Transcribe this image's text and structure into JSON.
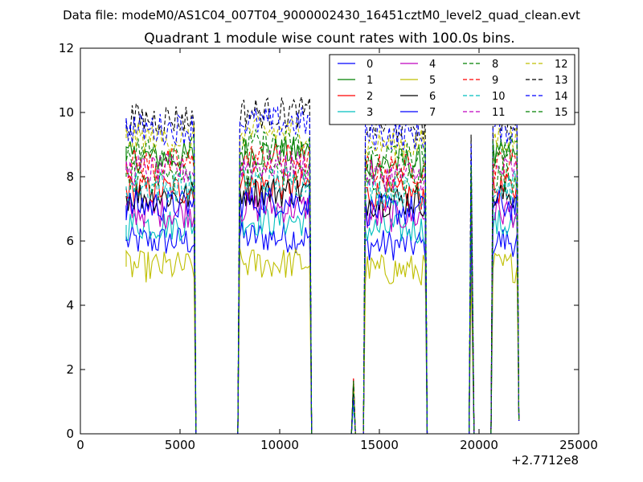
{
  "figure": {
    "suptitle": "Data file: modeM0/AS1C04_007T04_9000002430_16451cztM0_level2_quad_clean.evt"
  },
  "chart_data": {
    "type": "line",
    "title": "Quadrant 1 module wise count rates with 100.0s bins.",
    "xlabel": "",
    "ylabel": "",
    "xlim": [
      0,
      25000
    ],
    "ylim": [
      0,
      12
    ],
    "x_ticks": [
      0,
      5000,
      10000,
      15000,
      20000,
      25000
    ],
    "y_ticks": [
      0,
      2,
      4,
      6,
      8,
      10,
      12
    ],
    "x_offset_label": "+2.7712e8",
    "grid": false,
    "legend_position": "top-right",
    "legend_columns": 4,
    "series": [
      {
        "name": "0",
        "color": "#0000ff",
        "dash": "solid",
        "level": 6.0
      },
      {
        "name": "1",
        "color": "#008000",
        "dash": "solid",
        "level": 8.6
      },
      {
        "name": "2",
        "color": "#ff0000",
        "dash": "solid",
        "level": 7.6
      },
      {
        "name": "3",
        "color": "#00bfbf",
        "dash": "solid",
        "level": 6.5
      },
      {
        "name": "4",
        "color": "#bf00bf",
        "dash": "solid",
        "level": 6.9
      },
      {
        "name": "5",
        "color": "#bfbf00",
        "dash": "solid",
        "level": 5.2
      },
      {
        "name": "6",
        "color": "#000000",
        "dash": "solid",
        "level": 7.4
      },
      {
        "name": "7",
        "color": "#0000ff",
        "dash": "solid",
        "level": 7.1
      },
      {
        "name": "8",
        "color": "#008000",
        "dash": "dashed",
        "level": 8.0
      },
      {
        "name": "9",
        "color": "#ff0000",
        "dash": "dashed",
        "level": 8.4
      },
      {
        "name": "10",
        "color": "#00bfbf",
        "dash": "dashed",
        "level": 7.7
      },
      {
        "name": "11",
        "color": "#bf00bf",
        "dash": "dashed",
        "level": 8.2
      },
      {
        "name": "12",
        "color": "#bfbf00",
        "dash": "dashed",
        "level": 9.2
      },
      {
        "name": "13",
        "color": "#000000",
        "dash": "dashed",
        "level": 9.8
      },
      {
        "name": "14",
        "color": "#0000ff",
        "dash": "dashed",
        "level": 9.5
      },
      {
        "name": "15",
        "color": "#008000",
        "dash": "dashed",
        "level": 8.8
      }
    ],
    "segments": [
      {
        "x_start": 2300,
        "x_end": 5700,
        "scale": 1.0
      },
      {
        "x_start": 8000,
        "x_end": 11500,
        "scale": 1.02
      },
      {
        "x_start": 14300,
        "x_end": 17300,
        "scale": 0.98
      },
      {
        "x_start": 19600,
        "x_end": 19650,
        "scale": 0.95
      },
      {
        "x_start": 20700,
        "x_end": 21950,
        "scale": 1.0
      }
    ],
    "gap_level": 0,
    "spike": {
      "x": 13700,
      "value": 1.5
    }
  }
}
